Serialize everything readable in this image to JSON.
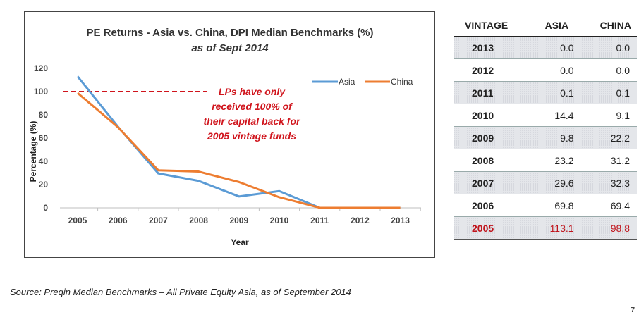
{
  "chart_data": {
    "type": "line",
    "title": "PE Returns - Asia vs. China, DPI Median Benchmarks (%)",
    "subtitle": "as of Sept 2014",
    "xlabel": "Year",
    "ylabel": "Percentage (%)",
    "categories": [
      "2005",
      "2006",
      "2007",
      "2008",
      "2009",
      "2010",
      "2011",
      "2012",
      "2013"
    ],
    "ylim": [
      0,
      120
    ],
    "yticks": [
      0,
      20,
      40,
      60,
      80,
      100,
      120
    ],
    "series": [
      {
        "name": "Asia",
        "color": "#5b9bd5",
        "values": [
          113.1,
          69.8,
          29.6,
          23.2,
          9.8,
          14.4,
          0.1,
          0.0,
          0.0
        ]
      },
      {
        "name": "China",
        "color": "#ed7d31",
        "values": [
          98.8,
          69.4,
          32.3,
          31.2,
          22.2,
          9.1,
          0.1,
          0.0,
          0.0
        ]
      }
    ],
    "reference_line": {
      "value": 100,
      "color": "#d0141c",
      "style": "dashed"
    },
    "annotation": [
      "LPs have only",
      "received 100% of",
      "their capital back for",
      "2005 vintage funds"
    ],
    "legend_position": "top-right",
    "grid": false
  },
  "table": {
    "headers": [
      "VINTAGE",
      "ASIA",
      "CHINA"
    ],
    "rows": [
      {
        "vintage": "2013",
        "asia": "0.0",
        "china": "0.0"
      },
      {
        "vintage": "2012",
        "asia": "0.0",
        "china": "0.0"
      },
      {
        "vintage": "2011",
        "asia": "0.1",
        "china": "0.1"
      },
      {
        "vintage": "2010",
        "asia": "14.4",
        "china": "9.1"
      },
      {
        "vintage": "2009",
        "asia": "9.8",
        "china": "22.2"
      },
      {
        "vintage": "2008",
        "asia": "23.2",
        "china": "31.2"
      },
      {
        "vintage": "2007",
        "asia": "29.6",
        "china": "32.3"
      },
      {
        "vintage": "2006",
        "asia": "69.8",
        "china": "69.4"
      },
      {
        "vintage": "2005",
        "asia": "113.1",
        "china": "98.8"
      }
    ],
    "highlight_color": "#c0141c"
  },
  "footer": {
    "source": "Source:  Preqin Median Benchmarks – All Private Equity Asia, as of September 2014",
    "page_number": "7"
  }
}
